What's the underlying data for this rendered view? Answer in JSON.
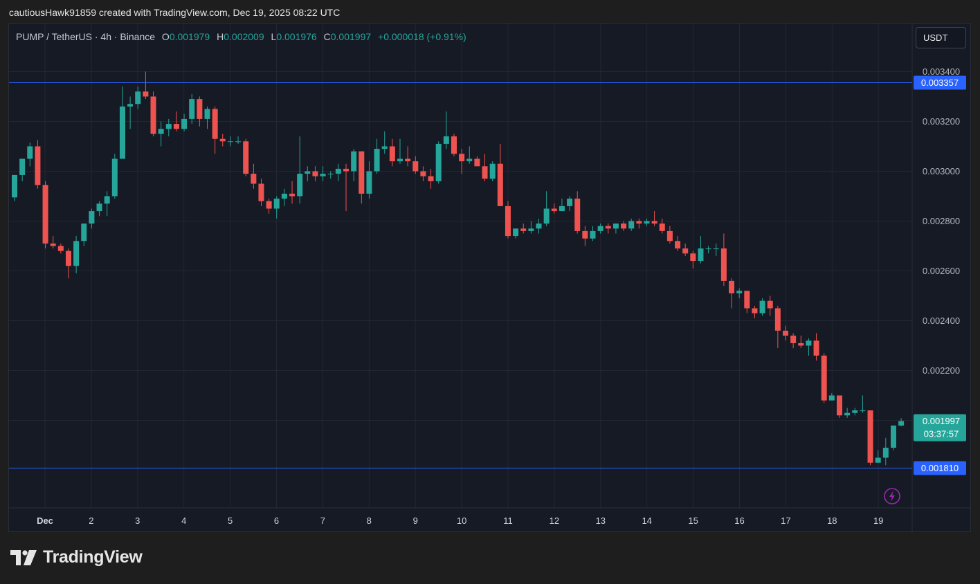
{
  "header": {
    "creator_line": "cautiousHawk91859 created with TradingView.com, Dec 19, 2025 08:22 UTC"
  },
  "legend": {
    "symbol": "PUMP / TetherUS · 4h · Binance",
    "o_label": "O",
    "o_value": "0.001979",
    "h_label": "H",
    "h_value": "0.002009",
    "l_label": "L",
    "l_value": "0.001976",
    "c_label": "C",
    "c_value": "0.001997",
    "change": "+0.000018 (+0.91%)"
  },
  "currency_button": {
    "label": "USDT"
  },
  "footer": {
    "brand": "TradingView"
  },
  "colors": {
    "up": "#26a69a",
    "down": "#ef5350",
    "level_line": "#2962ff",
    "level_label_bg": "#2962ff",
    "price_label_bg": "#26a69a",
    "alert_icon": "#9c27b0"
  },
  "chart_data": {
    "type": "candlestick",
    "ylim": [
      0.00165,
      0.00353
    ],
    "x_ticks": [
      "Dec",
      "2",
      "3",
      "4",
      "5",
      "6",
      "7",
      "8",
      "9",
      "10",
      "11",
      "12",
      "13",
      "14",
      "15",
      "16",
      "17",
      "18",
      "19"
    ],
    "y_ticks": [
      "0.002200",
      "0.002400",
      "0.002600",
      "0.002800",
      "0.003000",
      "0.003200",
      "0.003400"
    ],
    "horizontal_levels": [
      {
        "price": 0.003357,
        "label": "0.003357"
      },
      {
        "price": 0.00181,
        "label": "0.001810"
      }
    ],
    "last_price": {
      "price": 0.001997,
      "label": "0.001997",
      "countdown": "03:37:57"
    },
    "candles": [
      [
        0.002895,
        0.002985,
        0.00288,
        0.002985
      ],
      [
        0.002985,
        0.00305,
        0.00296,
        0.00305
      ],
      [
        0.00305,
        0.003115,
        0.00302,
        0.0031
      ],
      [
        0.0031,
        0.003125,
        0.00293,
        0.002945
      ],
      [
        0.002945,
        0.00296,
        0.00269,
        0.00271
      ],
      [
        0.00271,
        0.00274,
        0.00269,
        0.0027
      ],
      [
        0.0027,
        0.00271,
        0.00267,
        0.00268
      ],
      [
        0.00268,
        0.00269,
        0.00257,
        0.00262
      ],
      [
        0.00262,
        0.00274,
        0.00259,
        0.00272
      ],
      [
        0.00272,
        0.00279,
        0.0027,
        0.00279
      ],
      [
        0.00279,
        0.00285,
        0.00277,
        0.00284
      ],
      [
        0.00284,
        0.00288,
        0.00282,
        0.00287
      ],
      [
        0.00287,
        0.00292,
        0.00282,
        0.0029
      ],
      [
        0.0029,
        0.00307,
        0.00289,
        0.00305
      ],
      [
        0.00305,
        0.00334,
        0.00305,
        0.00326
      ],
      [
        0.00326,
        0.0033,
        0.00317,
        0.00327
      ],
      [
        0.00327,
        0.00334,
        0.00325,
        0.00332
      ],
      [
        0.00332,
        0.0034,
        0.00329,
        0.0033
      ],
      [
        0.0033,
        0.00332,
        0.00314,
        0.00315
      ],
      [
        0.00315,
        0.0032,
        0.0031,
        0.00317
      ],
      [
        0.00317,
        0.00321,
        0.00314,
        0.00319
      ],
      [
        0.00319,
        0.00324,
        0.00316,
        0.00317
      ],
      [
        0.00317,
        0.00323,
        0.00316,
        0.00321
      ],
      [
        0.00321,
        0.00331,
        0.00319,
        0.00329
      ],
      [
        0.00329,
        0.0033,
        0.00318,
        0.00321
      ],
      [
        0.00321,
        0.00326,
        0.00317,
        0.00325
      ],
      [
        0.00325,
        0.00326,
        0.00307,
        0.00313
      ],
      [
        0.00313,
        0.00315,
        0.0031,
        0.00312
      ],
      [
        0.00312,
        0.00314,
        0.0031,
        0.00312
      ],
      [
        0.00312,
        0.00314,
        0.00311,
        0.00312
      ],
      [
        0.00312,
        0.00313,
        0.00298,
        0.00299
      ],
      [
        0.00299,
        0.00303,
        0.00293,
        0.00295
      ],
      [
        0.00295,
        0.00297,
        0.00286,
        0.00288
      ],
      [
        0.00288,
        0.00289,
        0.00283,
        0.00285
      ],
      [
        0.00285,
        0.0029,
        0.00281,
        0.00289
      ],
      [
        0.00289,
        0.00293,
        0.00286,
        0.00291
      ],
      [
        0.00291,
        0.00296,
        0.00287,
        0.0029
      ],
      [
        0.0029,
        0.00314,
        0.00287,
        0.00299
      ],
      [
        0.00299,
        0.00302,
        0.00296,
        0.003
      ],
      [
        0.003,
        0.00302,
        0.00296,
        0.00298
      ],
      [
        0.00298,
        0.00302,
        0.00296,
        0.00299
      ],
      [
        0.00299,
        0.003,
        0.00297,
        0.00299
      ],
      [
        0.00299,
        0.00303,
        0.00296,
        0.00301
      ],
      [
        0.00301,
        0.00303,
        0.00284,
        0.003
      ],
      [
        0.003,
        0.00309,
        0.00296,
        0.00308
      ],
      [
        0.00308,
        0.00308,
        0.00287,
        0.00291
      ],
      [
        0.00291,
        0.00304,
        0.00289,
        0.003
      ],
      [
        0.003,
        0.00313,
        0.00299,
        0.00309
      ],
      [
        0.00309,
        0.00316,
        0.00307,
        0.0031
      ],
      [
        0.0031,
        0.00313,
        0.00302,
        0.00304
      ],
      [
        0.00304,
        0.00313,
        0.00303,
        0.00305
      ],
      [
        0.00305,
        0.0031,
        0.00302,
        0.00304
      ],
      [
        0.00304,
        0.00306,
        0.00299,
        0.003
      ],
      [
        0.003,
        0.00302,
        0.00296,
        0.00298
      ],
      [
        0.00298,
        0.00301,
        0.00293,
        0.00296
      ],
      [
        0.00296,
        0.00312,
        0.00295,
        0.00311
      ],
      [
        0.00311,
        0.00324,
        0.00309,
        0.00314
      ],
      [
        0.00314,
        0.00315,
        0.00306,
        0.00307
      ],
      [
        0.00307,
        0.00309,
        0.00299,
        0.00304
      ],
      [
        0.00304,
        0.0031,
        0.00303,
        0.00305
      ],
      [
        0.00305,
        0.00306,
        0.00302,
        0.00302
      ],
      [
        0.00302,
        0.00307,
        0.00296,
        0.00297
      ],
      [
        0.00297,
        0.00304,
        0.00296,
        0.00303
      ],
      [
        0.00303,
        0.00311,
        0.00286,
        0.00286
      ],
      [
        0.00286,
        0.00288,
        0.00273,
        0.00274
      ],
      [
        0.00274,
        0.00277,
        0.00273,
        0.00277
      ],
      [
        0.00277,
        0.00279,
        0.00275,
        0.00276
      ],
      [
        0.00276,
        0.0028,
        0.00275,
        0.00277
      ],
      [
        0.00277,
        0.00281,
        0.00275,
        0.00279
      ],
      [
        0.00279,
        0.00292,
        0.00278,
        0.00285
      ],
      [
        0.00285,
        0.00287,
        0.00283,
        0.00284
      ],
      [
        0.00284,
        0.00289,
        0.00284,
        0.00286
      ],
      [
        0.00286,
        0.0029,
        0.00284,
        0.00289
      ],
      [
        0.00289,
        0.00292,
        0.00275,
        0.00276
      ],
      [
        0.00276,
        0.00278,
        0.0027,
        0.00273
      ],
      [
        0.00273,
        0.00278,
        0.00272,
        0.00276
      ],
      [
        0.00276,
        0.00279,
        0.00275,
        0.00278
      ],
      [
        0.00278,
        0.00279,
        0.00275,
        0.00277
      ],
      [
        0.00277,
        0.00279,
        0.00275,
        0.00279
      ],
      [
        0.00279,
        0.0028,
        0.00276,
        0.00277
      ],
      [
        0.00277,
        0.00281,
        0.00276,
        0.0028
      ],
      [
        0.0028,
        0.00281,
        0.00277,
        0.00279
      ],
      [
        0.00279,
        0.00281,
        0.00278,
        0.0028
      ],
      [
        0.0028,
        0.00284,
        0.00278,
        0.00279
      ],
      [
        0.00279,
        0.00281,
        0.00275,
        0.00276
      ],
      [
        0.00276,
        0.00278,
        0.00271,
        0.00272
      ],
      [
        0.00272,
        0.00274,
        0.00268,
        0.00269
      ],
      [
        0.00269,
        0.00271,
        0.00266,
        0.00267
      ],
      [
        0.00267,
        0.00268,
        0.00261,
        0.00264
      ],
      [
        0.00264,
        0.00274,
        0.00263,
        0.00269
      ],
      [
        0.00269,
        0.0027,
        0.00267,
        0.00269
      ],
      [
        0.00269,
        0.00271,
        0.00266,
        0.00269
      ],
      [
        0.00269,
        0.00275,
        0.00254,
        0.00256
      ],
      [
        0.00256,
        0.00257,
        0.00245,
        0.00251
      ],
      [
        0.00251,
        0.00253,
        0.00249,
        0.00252
      ],
      [
        0.00252,
        0.00252,
        0.00243,
        0.00245
      ],
      [
        0.00245,
        0.00246,
        0.00241,
        0.00243
      ],
      [
        0.00243,
        0.00249,
        0.00242,
        0.00248
      ],
      [
        0.00248,
        0.0025,
        0.00242,
        0.00245
      ],
      [
        0.00245,
        0.00246,
        0.00229,
        0.00236
      ],
      [
        0.00236,
        0.00238,
        0.00232,
        0.00234
      ],
      [
        0.00234,
        0.00235,
        0.00229,
        0.00231
      ],
      [
        0.00231,
        0.00234,
        0.00229,
        0.0023
      ],
      [
        0.0023,
        0.00233,
        0.00226,
        0.00232
      ],
      [
        0.00232,
        0.00235,
        0.00224,
        0.00226
      ],
      [
        0.00226,
        0.00227,
        0.00207,
        0.00208
      ],
      [
        0.00208,
        0.00211,
        0.00208,
        0.0021
      ],
      [
        0.0021,
        0.0021,
        0.00201,
        0.00202
      ],
      [
        0.00202,
        0.00205,
        0.00201,
        0.00203
      ],
      [
        0.00203,
        0.00205,
        0.00202,
        0.00204
      ],
      [
        0.00204,
        0.0021,
        0.00203,
        0.00204
      ],
      [
        0.00204,
        0.00204,
        0.00182,
        0.00183
      ],
      [
        0.00183,
        0.00188,
        0.00183,
        0.00185
      ],
      [
        0.00185,
        0.00193,
        0.00182,
        0.00189
      ],
      [
        0.00189,
        0.00198,
        0.00188,
        0.001979
      ],
      [
        0.001979,
        0.002009,
        0.001976,
        0.001997
      ]
    ]
  }
}
